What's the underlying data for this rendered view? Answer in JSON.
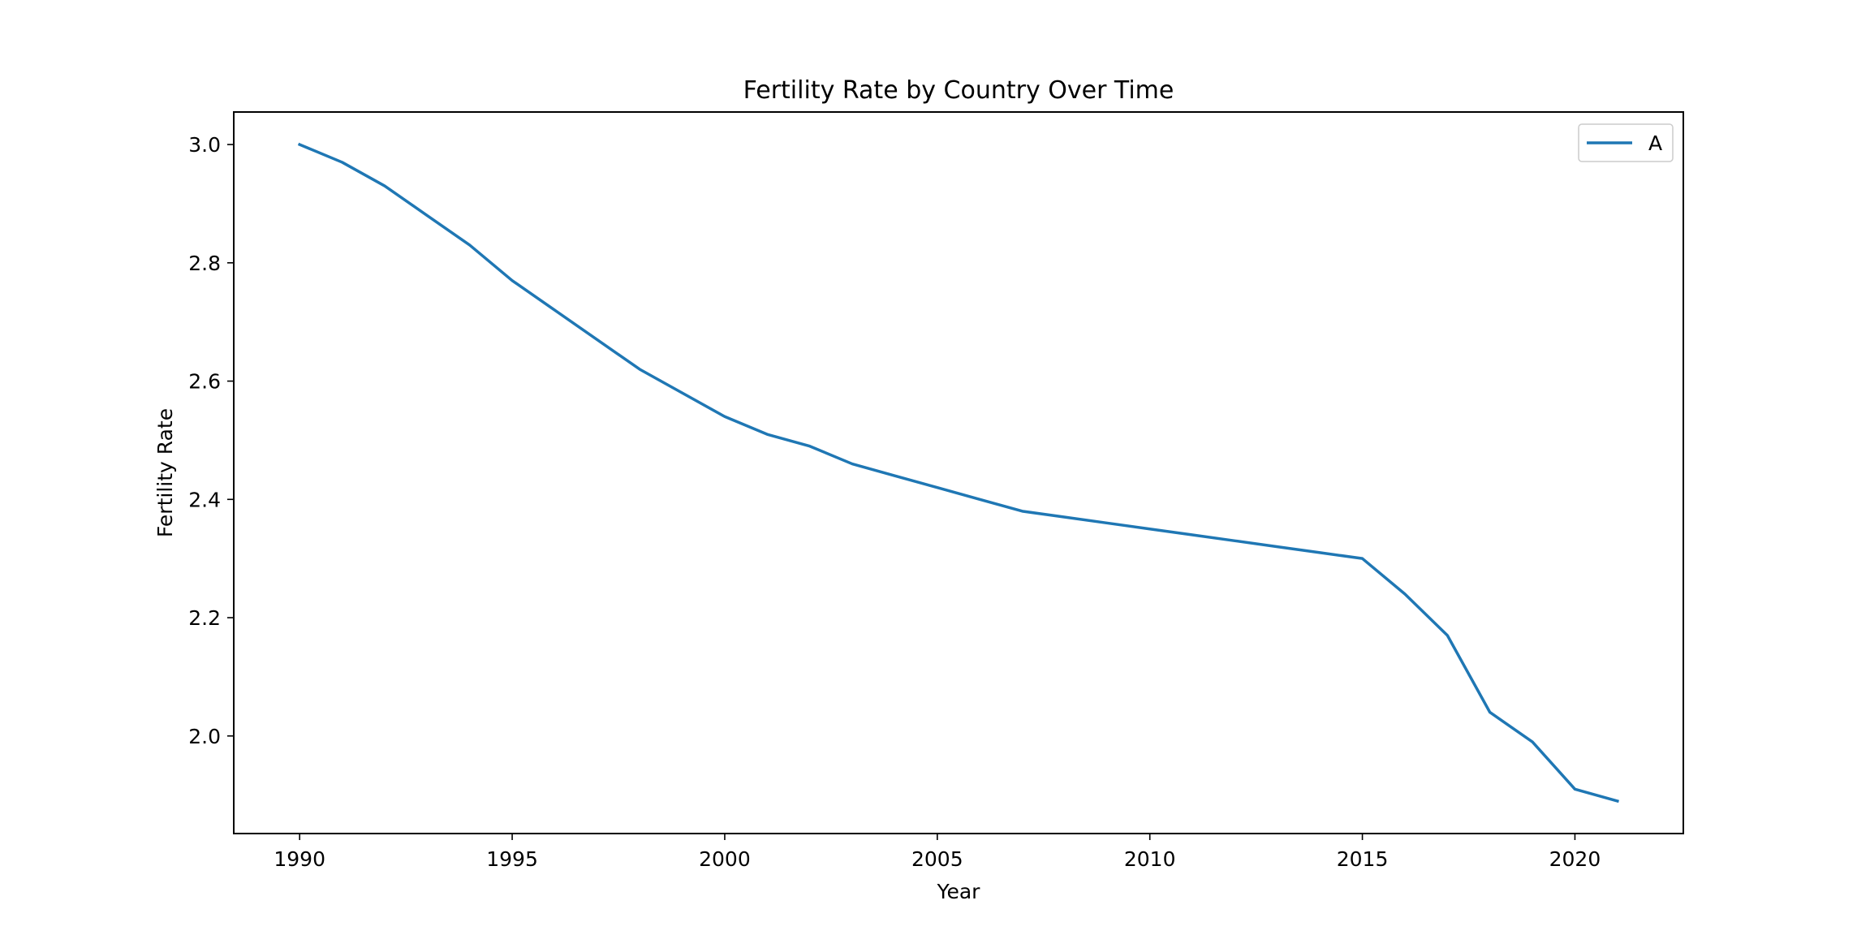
{
  "chart_data": {
    "type": "line",
    "title": "Fertility Rate by Country Over Time",
    "xlabel": "Year",
    "ylabel": "Fertility Rate",
    "xlim": [
      1988.45,
      2022.55
    ],
    "ylim": [
      1.835,
      3.055
    ],
    "x_ticks": [
      1990,
      1995,
      2000,
      2005,
      2010,
      2015,
      2020
    ],
    "y_ticks": [
      2.0,
      2.2,
      2.4,
      2.6,
      2.8,
      3.0
    ],
    "y_tick_labels": [
      "2.0",
      "2.2",
      "2.4",
      "2.6",
      "2.8",
      "3.0"
    ],
    "grid": false,
    "legend_position": "top-right",
    "series": [
      {
        "name": "A",
        "color": "#1f77b4",
        "x": [
          1990,
          1991,
          1992,
          1993,
          1994,
          1995,
          1996,
          1997,
          1998,
          1999,
          2000,
          2001,
          2002,
          2003,
          2004,
          2005,
          2006,
          2007,
          2008,
          2009,
          2010,
          2011,
          2012,
          2013,
          2014,
          2015,
          2016,
          2017,
          2018,
          2019,
          2020,
          2021
        ],
        "values": [
          3.0,
          2.97,
          2.93,
          2.88,
          2.83,
          2.77,
          2.72,
          2.67,
          2.62,
          2.58,
          2.54,
          2.51,
          2.49,
          2.46,
          2.44,
          2.42,
          2.4,
          2.38,
          2.37,
          2.36,
          2.35,
          2.34,
          2.33,
          2.32,
          2.31,
          2.3,
          2.24,
          2.17,
          2.04,
          1.99,
          1.91,
          1.89
        ]
      }
    ]
  }
}
